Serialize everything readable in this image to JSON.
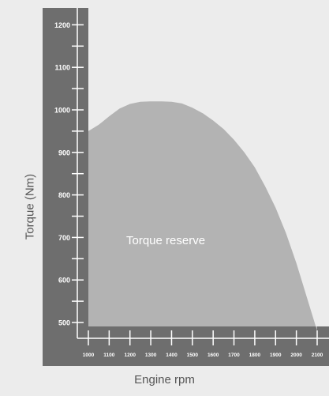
{
  "chart_data": {
    "type": "area",
    "xlabel": "Engine rpm",
    "ylabel": "Torque (Nm)",
    "x_ticks": [
      1000,
      1100,
      1200,
      1300,
      1400,
      1500,
      1600,
      1700,
      1800,
      1900,
      2000,
      2100
    ],
    "y_ticks": [
      500,
      600,
      700,
      800,
      900,
      1000,
      1100,
      1200
    ],
    "xlim": [
      950,
      2150
    ],
    "ylim": [
      460,
      1250
    ],
    "annotation": "Torque reserve",
    "series": [
      {
        "x": [
          1000,
          1050,
          1100,
          1150,
          1200,
          1250,
          1300,
          1350,
          1400,
          1450,
          1500,
          1550,
          1600,
          1650,
          1700,
          1750,
          1800,
          1850,
          1900,
          1950,
          2000,
          2050,
          2100
        ],
        "y": [
          950,
          965,
          985,
          1003,
          1014,
          1019,
          1020,
          1020,
          1019,
          1015,
          1005,
          992,
          975,
          955,
          930,
          900,
          865,
          820,
          770,
          710,
          640,
          560,
          480
        ]
      }
    ],
    "colors": {
      "frame": "#6e6e6e",
      "area": "#b3b3b3",
      "background": "#ececec",
      "tick_text": "#ffffff"
    }
  }
}
